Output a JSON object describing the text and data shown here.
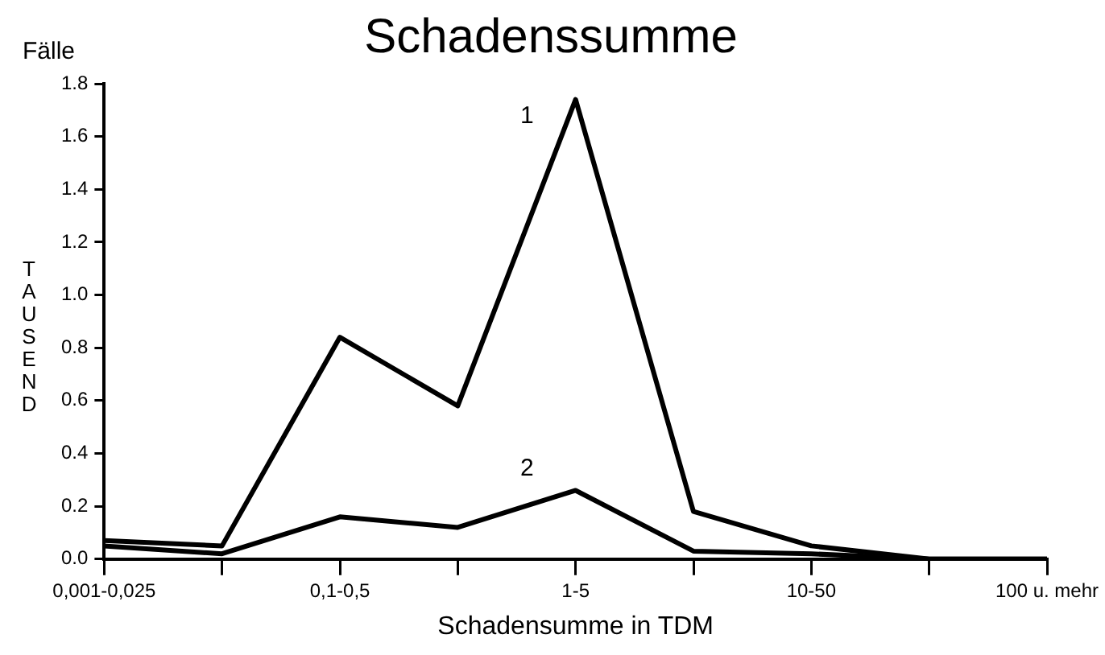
{
  "chart_data": {
    "type": "line",
    "title": "Schadenssumme",
    "xlabel": "Schadensumme in TDM",
    "ylabel": "TAUSEND",
    "annotations": [
      "Fälle"
    ],
    "categories": [
      "0,001-0,025",
      null,
      "0,1-0,5",
      null,
      "1-5",
      null,
      "10-50",
      null,
      "100 u. mehr"
    ],
    "series": [
      {
        "name": "1",
        "color": "#000000",
        "values": [
          0.07,
          0.05,
          0.84,
          0.58,
          1.74,
          0.18,
          0.05,
          0.0,
          0.0
        ]
      },
      {
        "name": "2",
        "color": "#000000",
        "values": [
          0.05,
          0.02,
          0.16,
          0.12,
          0.26,
          0.03,
          0.02,
          0.0,
          0.0
        ]
      }
    ],
    "ylim": [
      0,
      1.8
    ],
    "yticks": [
      {
        "value": 0,
        "label": "0.0"
      },
      0.2,
      0.4,
      0.6,
      0.8,
      {
        "value": 1,
        "label": "1.0"
      },
      1.2,
      1.4,
      1.6,
      1.8
    ],
    "grid": false,
    "legend": false,
    "marker": "none",
    "line_style": "solid"
  }
}
